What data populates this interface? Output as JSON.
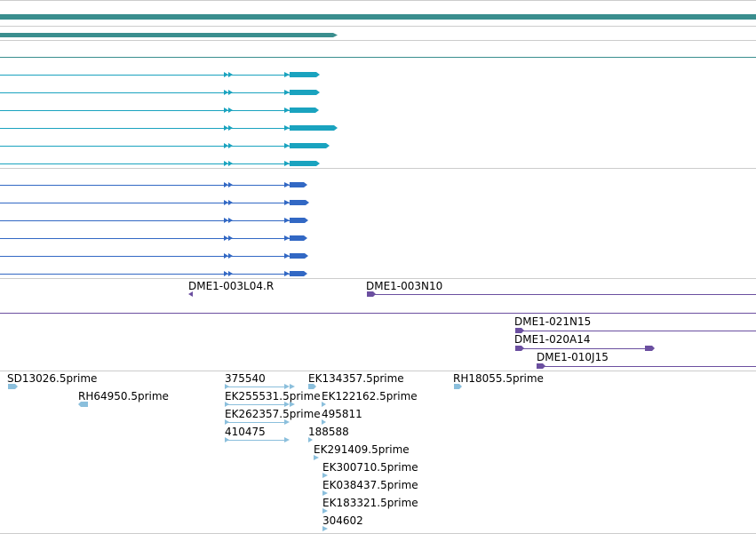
{
  "colors": {
    "teal_dark": "#3a8e8e",
    "teal_bright": "#1aa3bf",
    "blue": "#3268c4",
    "purple": "#6b4fa0",
    "light_blue": "#8bbfdc",
    "divider": "#cccccc",
    "label": "#000000"
  },
  "clone_labels": {
    "dme1_003l04r": "DME1-003L04.R",
    "dme1_003n10": "DME1-003N10",
    "dme1_021n15": "DME1-021N15",
    "dme1_020a14": "DME1-020A14",
    "dme1_010j15": "DME1-010J15"
  },
  "est_labels": {
    "sd13026": "SD13026.5prime",
    "rh64950": "RH64950.5prime",
    "e375540": "375540",
    "ek255531": "EK255531.5prime",
    "ek262357": "EK262357.5prime",
    "e410475": "410475",
    "ek134357": "EK134357.5prime",
    "ek122162": "EK122162.5prime",
    "e495811": "495811",
    "e188588": "188588",
    "ek291409": "EK291409.5prime",
    "ek300710": "EK300710.5prime",
    "ek038437": "EK038437.5prime",
    "ek183321": "EK183321.5prime",
    "e304602": "304602",
    "rh18055": "RH18055.5prime"
  }
}
